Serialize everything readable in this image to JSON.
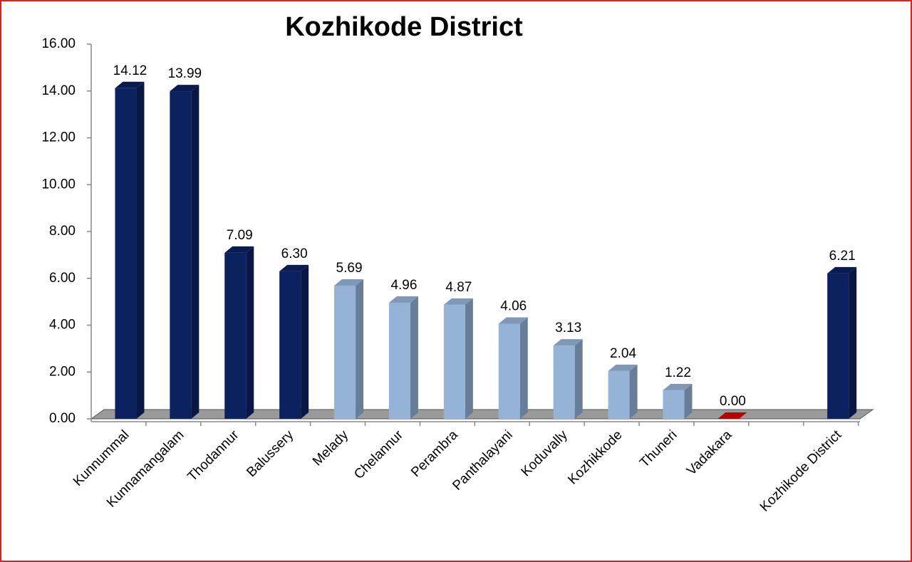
{
  "chart_data": {
    "type": "bar",
    "title": "Kozhikode District",
    "categories": [
      "Kunnummal",
      "Kunnamangalam",
      "Thodannur",
      "Balussery",
      "Melady",
      "Chelannur",
      "Perambra",
      "Panthalayani",
      "Koduvally",
      "Kozhikkode",
      "Thuneri",
      "Vadakara",
      null,
      "Kozhikode District"
    ],
    "values": [
      14.12,
      13.99,
      7.09,
      6.3,
      5.69,
      4.96,
      4.87,
      4.06,
      3.13,
      2.04,
      1.22,
      0,
      null,
      6.21
    ],
    "value_labels": [
      "14.12",
      "13.99",
      "7.09",
      "6.30",
      "5.69",
      "4.96",
      "4.87",
      "4.06",
      "3.13",
      "2.04",
      "1.22",
      "0.00",
      null,
      "6.21"
    ],
    "colors": [
      "#0b2160",
      "#0b2160",
      "#0b2160",
      "#0b2160",
      "#95b3d7",
      "#95b3d7",
      "#95b3d7",
      "#95b3d7",
      "#95b3d7",
      "#95b3d7",
      "#95b3d7",
      "#e00000",
      null,
      "#0b2160"
    ],
    "ylim": [
      0,
      16
    ],
    "yticks": [
      {
        "value": 0,
        "label": "0.00"
      },
      {
        "value": 2,
        "label": "2.00"
      },
      {
        "value": 4,
        "label": "4.00"
      },
      {
        "value": 6,
        "label": "6.00"
      },
      {
        "value": 8,
        "label": "8.00"
      },
      {
        "value": 10,
        "label": "10.00"
      },
      {
        "value": 12,
        "label": "12.00"
      },
      {
        "value": 14,
        "label": "14.00"
      },
      {
        "value": 16,
        "label": "16.00"
      }
    ],
    "grid": false
  }
}
